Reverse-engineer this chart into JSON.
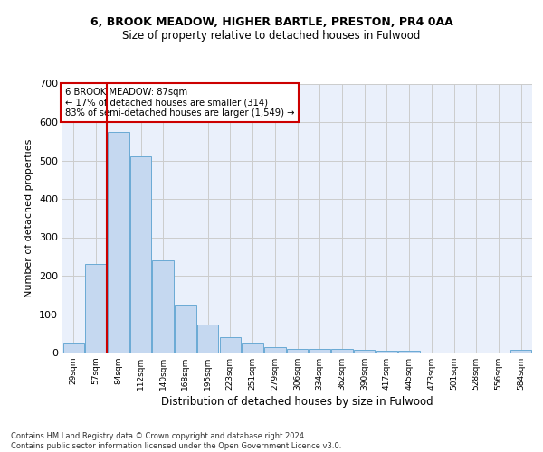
{
  "title1": "6, BROOK MEADOW, HIGHER BARTLE, PRESTON, PR4 0AA",
  "title2": "Size of property relative to detached houses in Fulwood",
  "xlabel": "Distribution of detached houses by size in Fulwood",
  "ylabel": "Number of detached properties",
  "categories": [
    "29sqm",
    "57sqm",
    "84sqm",
    "112sqm",
    "140sqm",
    "168sqm",
    "195sqm",
    "223sqm",
    "251sqm",
    "279sqm",
    "306sqm",
    "334sqm",
    "362sqm",
    "390sqm",
    "417sqm",
    "445sqm",
    "473sqm",
    "501sqm",
    "528sqm",
    "556sqm",
    "584sqm"
  ],
  "values": [
    25,
    230,
    575,
    510,
    240,
    125,
    72,
    40,
    25,
    15,
    10,
    10,
    10,
    6,
    5,
    5,
    0,
    0,
    0,
    0,
    8
  ],
  "bar_color": "#c5d8f0",
  "bar_edge_color": "#6aaad4",
  "grid_color": "#cccccc",
  "bg_color": "#eaf0fb",
  "vline_color": "#cc0000",
  "annotation_text": "6 BROOK MEADOW: 87sqm\n← 17% of detached houses are smaller (314)\n83% of semi-detached houses are larger (1,549) →",
  "annotation_box_color": "#cc0000",
  "footer": "Contains HM Land Registry data © Crown copyright and database right 2024.\nContains public sector information licensed under the Open Government Licence v3.0.",
  "ylim": [
    0,
    700
  ],
  "yticks": [
    0,
    100,
    200,
    300,
    400,
    500,
    600,
    700
  ]
}
